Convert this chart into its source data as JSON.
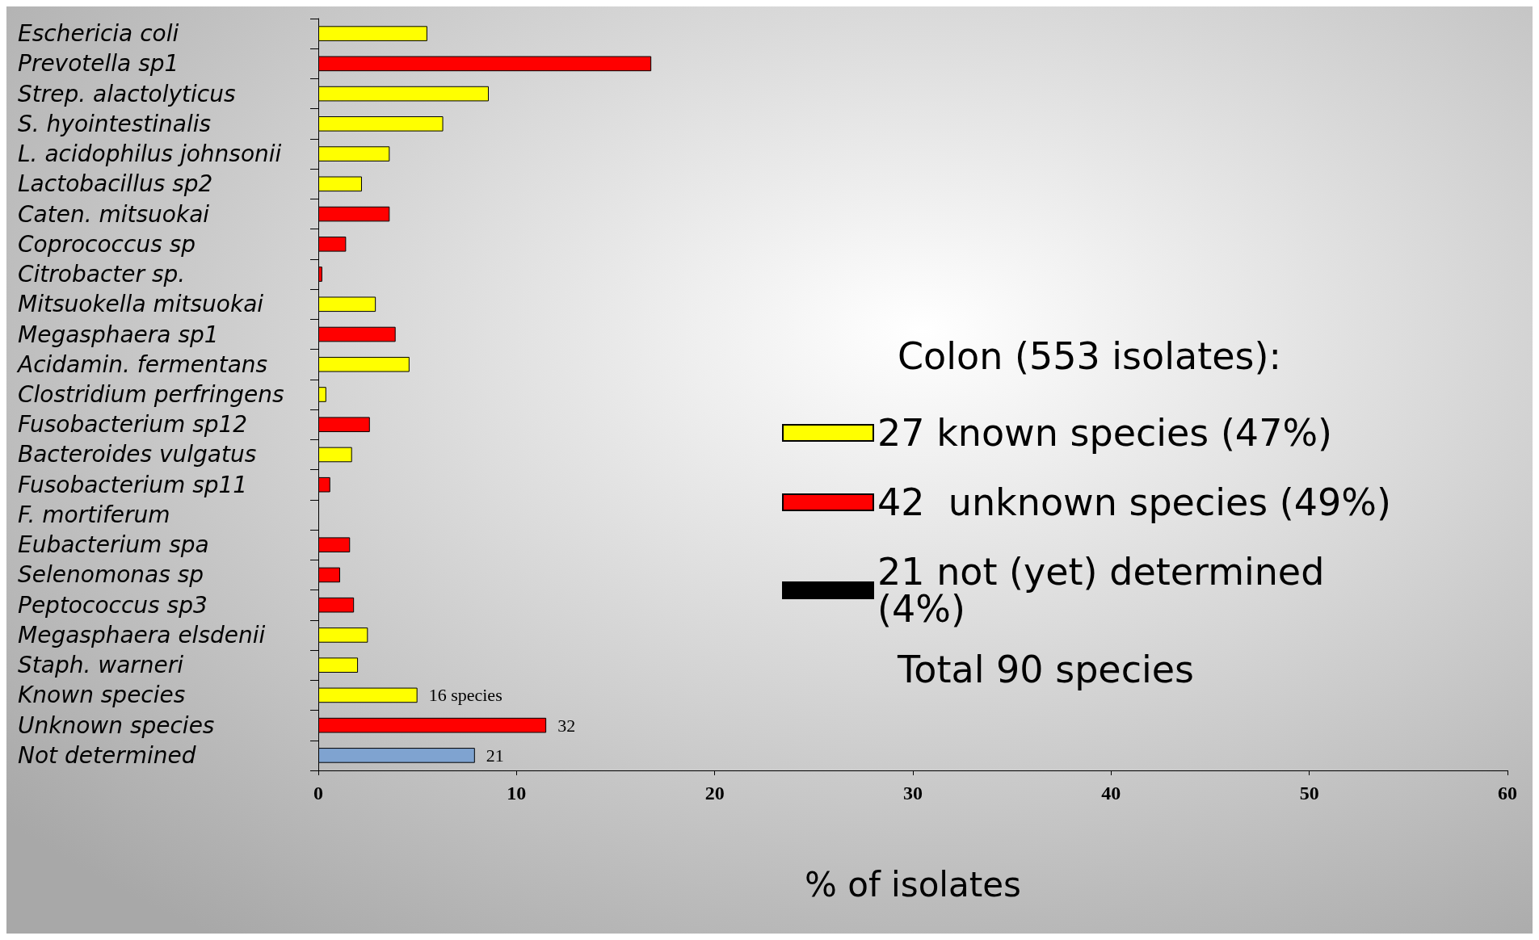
{
  "chart_data": {
    "type": "bar",
    "orientation": "horizontal",
    "stacked": true,
    "categories": [
      "Eschericia coli",
      "Prevotella sp1",
      "Strep. alactolyticus",
      "S. hyointestinalis",
      "L. acidophilus johnsonii",
      "Lactobacillus sp2",
      "Caten. mitsuokai",
      "Coprococcus sp",
      "Citrobacter sp.",
      "Mitsuokella mitsuokai",
      "Megasphaera sp1",
      "Acidamin. fermentans",
      "Clostridium perfringens",
      "Fusobacterium sp12",
      "Bacteroides vulgatus",
      "Fusobacterium sp11",
      "F. mortiferum",
      "Eubacterium spa",
      "Selenomonas sp",
      "Peptococcus sp3",
      "Megasphaera elsdenii",
      "Staph. warneri",
      "Known species",
      "Unknown species",
      "Not determined"
    ],
    "series": [
      {
        "name": "27 known species (47%)",
        "color": "#ffff00",
        "values": [
          5.5,
          null,
          8.6,
          6.3,
          3.6,
          2.2,
          null,
          null,
          null,
          2.9,
          null,
          4.6,
          0.4,
          null,
          1.7,
          null,
          null,
          null,
          null,
          null,
          2.5,
          2.0,
          5.0,
          null,
          null
        ]
      },
      {
        "name": "42  unknown species (49%)",
        "color": "#ff0000",
        "values": [
          null,
          16.8,
          null,
          null,
          null,
          null,
          3.6,
          1.4,
          0.2,
          null,
          3.9,
          null,
          null,
          2.6,
          null,
          0.6,
          null,
          1.6,
          1.1,
          1.8,
          null,
          null,
          null,
          11.5,
          null
        ]
      },
      {
        "name": "21 not (yet) determined (4%)",
        "color": "#000000",
        "values": [
          null,
          null,
          null,
          null,
          null,
          null,
          null,
          null,
          null,
          null,
          null,
          null,
          null,
          null,
          null,
          null,
          null,
          null,
          null,
          null,
          null,
          null,
          null,
          null,
          null
        ]
      },
      {
        "color": "#7fa3d0",
        "values": [
          null,
          null,
          null,
          null,
          null,
          null,
          null,
          null,
          null,
          null,
          null,
          null,
          null,
          null,
          null,
          null,
          null,
          null,
          null,
          null,
          null,
          null,
          null,
          null,
          7.9
        ]
      }
    ],
    "xlim": [
      0,
      60
    ],
    "xticks": [
      0,
      10,
      20,
      30,
      40,
      50,
      60
    ],
    "xlabel": "% of isolates",
    "legend_title": "Colon (553 isolates):",
    "legend": "right",
    "grid": false,
    "annotations": [
      "Total 90 species",
      {
        "text": "16 species",
        "x": 5.0,
        "y": "Known species"
      },
      {
        "text": "32",
        "x": 11.5,
        "y": "Unknown species"
      },
      {
        "text": "21",
        "x": 7.9,
        "y": "Not determined"
      }
    ]
  }
}
